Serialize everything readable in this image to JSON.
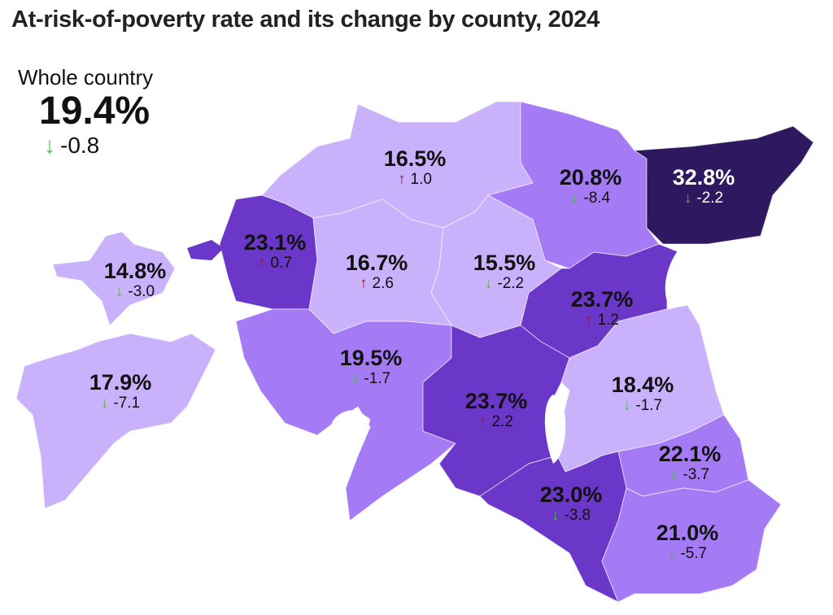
{
  "title": "At-risk-of-poverty rate and its change by county, 2024",
  "whole_country": {
    "label": "Whole country",
    "value": "19.4%",
    "change": "-0.8",
    "direction": "down"
  },
  "colors": {
    "light": "#c9b1fb",
    "mid": "#a57af5",
    "dark": "#6a37c8",
    "darkest": "#2e1860",
    "up": "#a8190f",
    "down": "#4cbb47"
  },
  "regions": [
    {
      "value": "16.5%",
      "change": "1.0",
      "direction": "up",
      "shade": "light"
    },
    {
      "value": "20.8%",
      "change": "-8.4",
      "direction": "down",
      "shade": "mid"
    },
    {
      "value": "32.8%",
      "change": "-2.2",
      "direction": "down",
      "shade": "darkest"
    },
    {
      "value": "23.1%",
      "change": "0.7",
      "direction": "up",
      "shade": "dark"
    },
    {
      "value": "16.7%",
      "change": "2.6",
      "direction": "up",
      "shade": "light"
    },
    {
      "value": "15.5%",
      "change": "-2.2",
      "direction": "down",
      "shade": "light"
    },
    {
      "value": "23.7%",
      "change": "1.2",
      "direction": "up",
      "shade": "dark"
    },
    {
      "value": "14.8%",
      "change": "-3.0",
      "direction": "down",
      "shade": "light"
    },
    {
      "value": "17.9%",
      "change": "-7.1",
      "direction": "down",
      "shade": "light"
    },
    {
      "value": "19.5%",
      "change": "-1.7",
      "direction": "down",
      "shade": "mid"
    },
    {
      "value": "23.7%",
      "change": "2.2",
      "direction": "up",
      "shade": "dark"
    },
    {
      "value": "18.4%",
      "change": "-1.7",
      "direction": "down",
      "shade": "light"
    },
    {
      "value": "22.1%",
      "change": "-3.7",
      "direction": "down",
      "shade": "mid"
    },
    {
      "value": "23.0%",
      "change": "-3.8",
      "direction": "down",
      "shade": "dark"
    },
    {
      "value": "21.0%",
      "change": "-5.7",
      "direction": "down",
      "shade": "mid"
    }
  ]
}
